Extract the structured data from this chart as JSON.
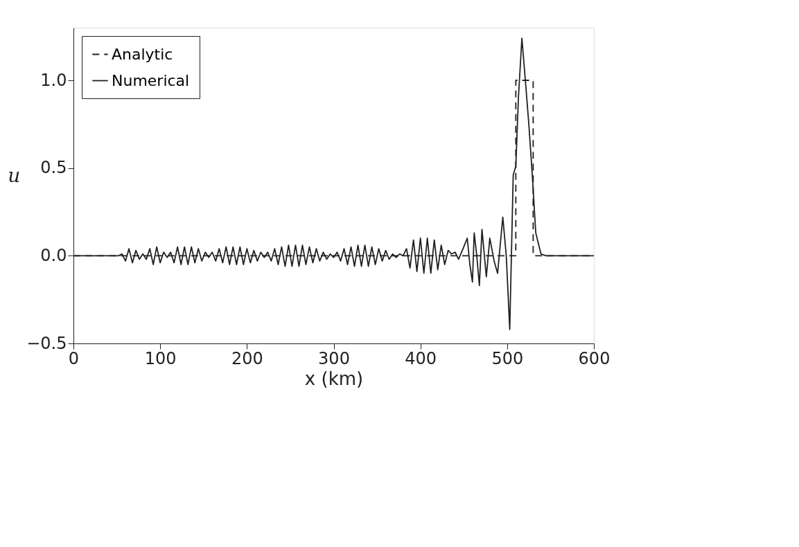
{
  "chart_data": {
    "type": "line",
    "xlabel": "x (km)",
    "ylabel": "u",
    "xlim": [
      0,
      600
    ],
    "xticks": [
      0,
      100,
      200,
      300,
      400,
      500,
      600
    ],
    "ylim": [
      -0.5,
      1.3
    ],
    "yticks": [
      {
        "value": -0.5,
        "label": "−0.5"
      },
      {
        "value": 0,
        "label": "0.0"
      },
      {
        "value": 0.5,
        "label": "0.5"
      },
      {
        "value": 1.0,
        "label": "1.0"
      }
    ],
    "grid": false,
    "legend": "top left",
    "series": [
      {
        "name": "Analytic",
        "color": "#231f20",
        "line_style": "dashed",
        "x": [
          0,
          510,
          510,
          530,
          530,
          600
        ],
        "values": [
          0,
          0,
          1.0,
          1.0,
          0,
          0
        ]
      },
      {
        "name": "Numerical",
        "color": "#231f20",
        "line_style": "solid",
        "x": [
          0,
          52,
          56,
          60,
          64,
          68,
          72,
          76,
          80,
          84,
          88,
          92,
          96,
          100,
          104,
          108,
          112,
          116,
          120,
          124,
          128,
          132,
          136,
          140,
          144,
          148,
          152,
          156,
          160,
          164,
          168,
          172,
          176,
          180,
          184,
          188,
          192,
          196,
          200,
          204,
          208,
          212,
          216,
          220,
          224,
          228,
          232,
          236,
          240,
          244,
          248,
          252,
          256,
          260,
          264,
          268,
          272,
          276,
          280,
          284,
          288,
          292,
          296,
          300,
          304,
          308,
          312,
          316,
          320,
          324,
          328,
          332,
          336,
          340,
          344,
          348,
          352,
          356,
          360,
          364,
          368,
          372,
          376,
          380,
          384,
          388,
          392,
          396,
          400,
          404,
          408,
          412,
          416,
          420,
          424,
          428,
          432,
          436,
          440,
          444,
          450,
          454,
          457,
          460,
          462,
          465,
          468,
          471,
          476,
          480,
          485,
          489,
          495,
          499,
          503,
          507,
          510,
          513,
          517,
          521,
          525,
          529,
          533,
          539,
          545,
          600
        ],
        "values": [
          0,
          0,
          0.01,
          -0.03,
          0.04,
          -0.04,
          0.03,
          -0.02,
          0.01,
          -0.02,
          0.04,
          -0.05,
          0.05,
          -0.04,
          0.02,
          -0.01,
          0.02,
          -0.04,
          0.05,
          -0.05,
          0.05,
          -0.05,
          0.05,
          -0.04,
          0.04,
          -0.03,
          0.02,
          -0.01,
          0.02,
          -0.03,
          0.04,
          -0.04,
          0.05,
          -0.05,
          0.05,
          -0.05,
          0.05,
          -0.05,
          0.04,
          -0.04,
          0.03,
          -0.03,
          0.02,
          -0.01,
          0.02,
          -0.03,
          0.04,
          -0.05,
          0.05,
          -0.06,
          0.06,
          -0.06,
          0.06,
          -0.06,
          0.06,
          -0.05,
          0.05,
          -0.04,
          0.04,
          -0.03,
          0.02,
          -0.02,
          0.01,
          -0.01,
          0.02,
          -0.03,
          0.04,
          -0.05,
          0.05,
          -0.06,
          0.06,
          -0.06,
          0.06,
          -0.06,
          0.05,
          -0.05,
          0.04,
          -0.03,
          0.03,
          -0.02,
          0.01,
          -0.01,
          0.01,
          0.0,
          0.04,
          -0.07,
          0.09,
          -0.09,
          0.1,
          -0.1,
          0.1,
          -0.1,
          0.09,
          -0.08,
          0.06,
          -0.05,
          0.03,
          0.01,
          0.02,
          -0.02,
          0.05,
          0.1,
          -0.05,
          -0.15,
          0.13,
          0.0,
          -0.17,
          0.15,
          -0.12,
          0.1,
          -0.03,
          -0.1,
          0.22,
          0.0,
          -0.42,
          0.46,
          0.51,
          0.9,
          1.24,
          1.0,
          0.75,
          0.46,
          0.13,
          0.01,
          0.0,
          0.0
        ]
      }
    ]
  }
}
